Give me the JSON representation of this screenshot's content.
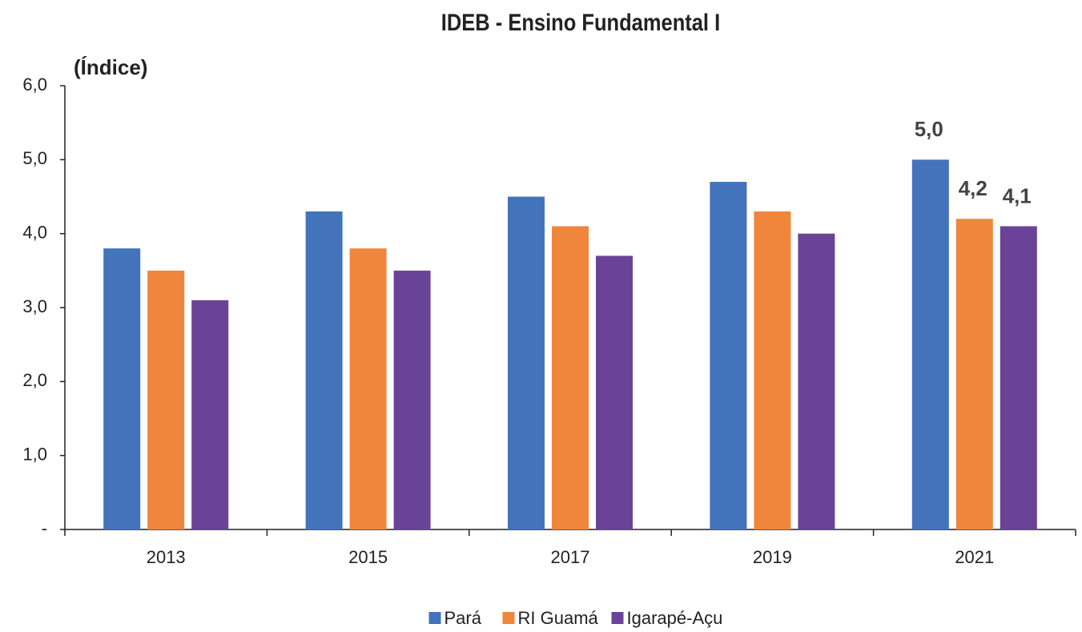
{
  "chart_data": {
    "type": "bar",
    "title": "IDEB - Ensino Fundamental I",
    "y_label": "(Índice)",
    "categories": [
      "2013",
      "2015",
      "2017",
      "2019",
      "2021"
    ],
    "series": [
      {
        "name": "Pará",
        "color": "#4273bb",
        "values": [
          3.8,
          4.3,
          4.5,
          4.7,
          5.0
        ],
        "value_labels": [
          null,
          null,
          null,
          null,
          "5,0"
        ]
      },
      {
        "name": "RI Guamá",
        "color": "#f0863c",
        "values": [
          3.5,
          3.8,
          4.1,
          4.3,
          4.2
        ],
        "value_labels": [
          null,
          null,
          null,
          null,
          "4,2"
        ]
      },
      {
        "name": "Igarapé-Açu",
        "color": "#6a4398",
        "values": [
          3.1,
          3.5,
          3.7,
          4.0,
          4.1
        ],
        "value_labels": [
          null,
          null,
          null,
          null,
          "4,1"
        ]
      }
    ],
    "ylim": [
      0,
      6
    ],
    "yticks": [
      {
        "value": 0,
        "label": "-"
      },
      {
        "value": 1,
        "label": "1,0"
      },
      {
        "value": 2,
        "label": "2,0"
      },
      {
        "value": 3,
        "label": "3,0"
      },
      {
        "value": 4,
        "label": "4,0"
      },
      {
        "value": 5,
        "label": "5,0"
      },
      {
        "value": 6,
        "label": "6,0"
      }
    ],
    "grid": false,
    "legend": "bottom"
  }
}
